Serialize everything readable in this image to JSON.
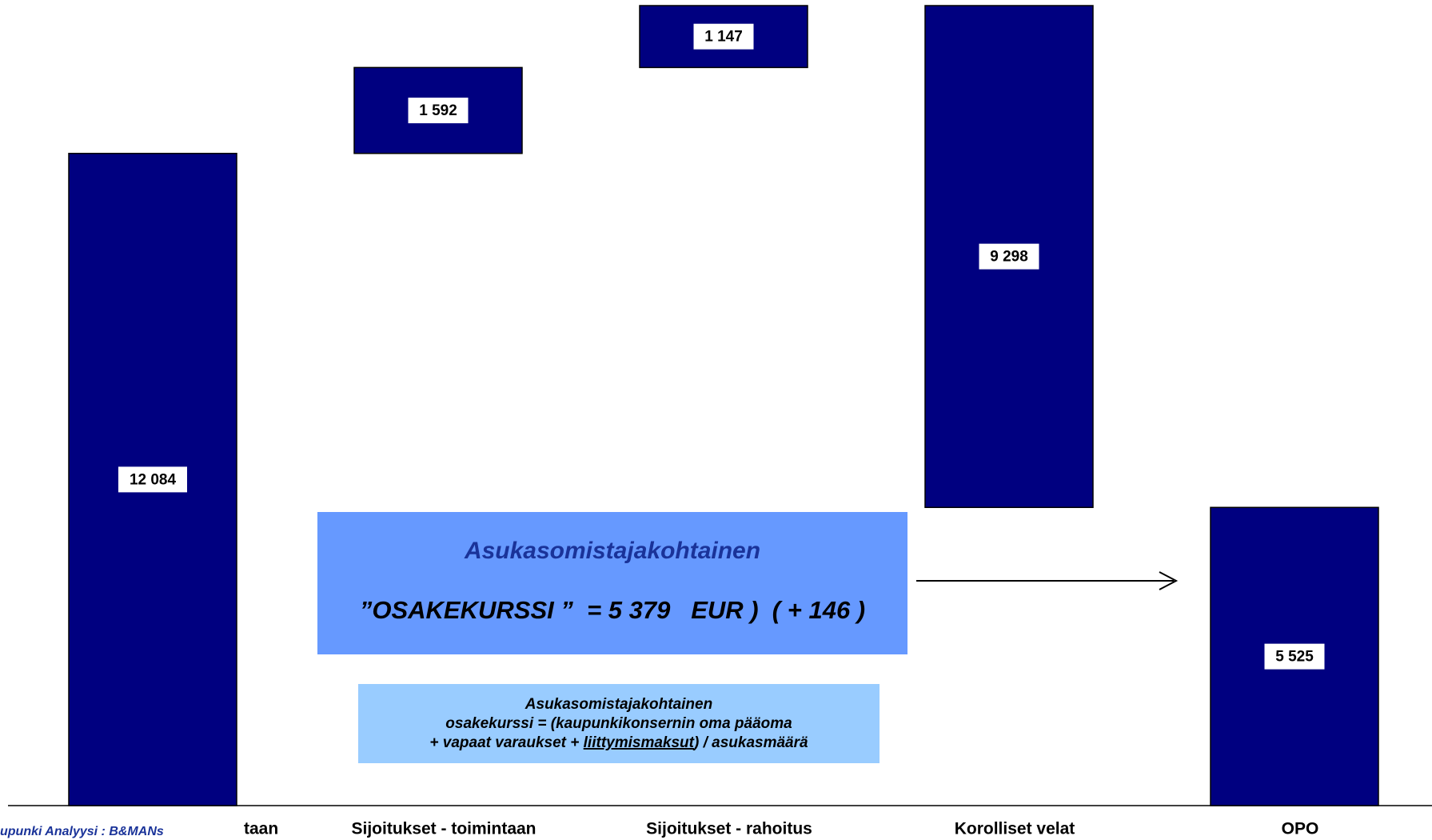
{
  "chart_data": {
    "type": "waterfall",
    "categories": [
      "taan",
      "Sijoitukset - toimintaan",
      "Sijoitukset - rahoitus",
      "Korolliset velat",
      "OPO"
    ],
    "values": [
      12084,
      1592,
      1147,
      -9298,
      5525
    ],
    "value_labels": [
      "12 084",
      "1 592",
      "1 147",
      "9 298",
      "5 525"
    ],
    "measure": [
      "absolute",
      "relative",
      "relative",
      "relative",
      "total"
    ],
    "color": "#000080",
    "footer": "upunki   Analyysi : B&MANs",
    "annotations": [
      {
        "lines": [
          "Asukasomistajakohtainen",
          "”OSAKEKURSSI ”  = 5 379   EUR )  ( + 146 )"
        ]
      },
      {
        "lines": [
          "Asukasomistajakohtainen",
          "osakekurssi = (kaupunkikonsernin oma pääoma",
          "+ vapaat varaukset + ",
          "liittymismaksut",
          ") / asukasmäärä"
        ]
      }
    ]
  }
}
